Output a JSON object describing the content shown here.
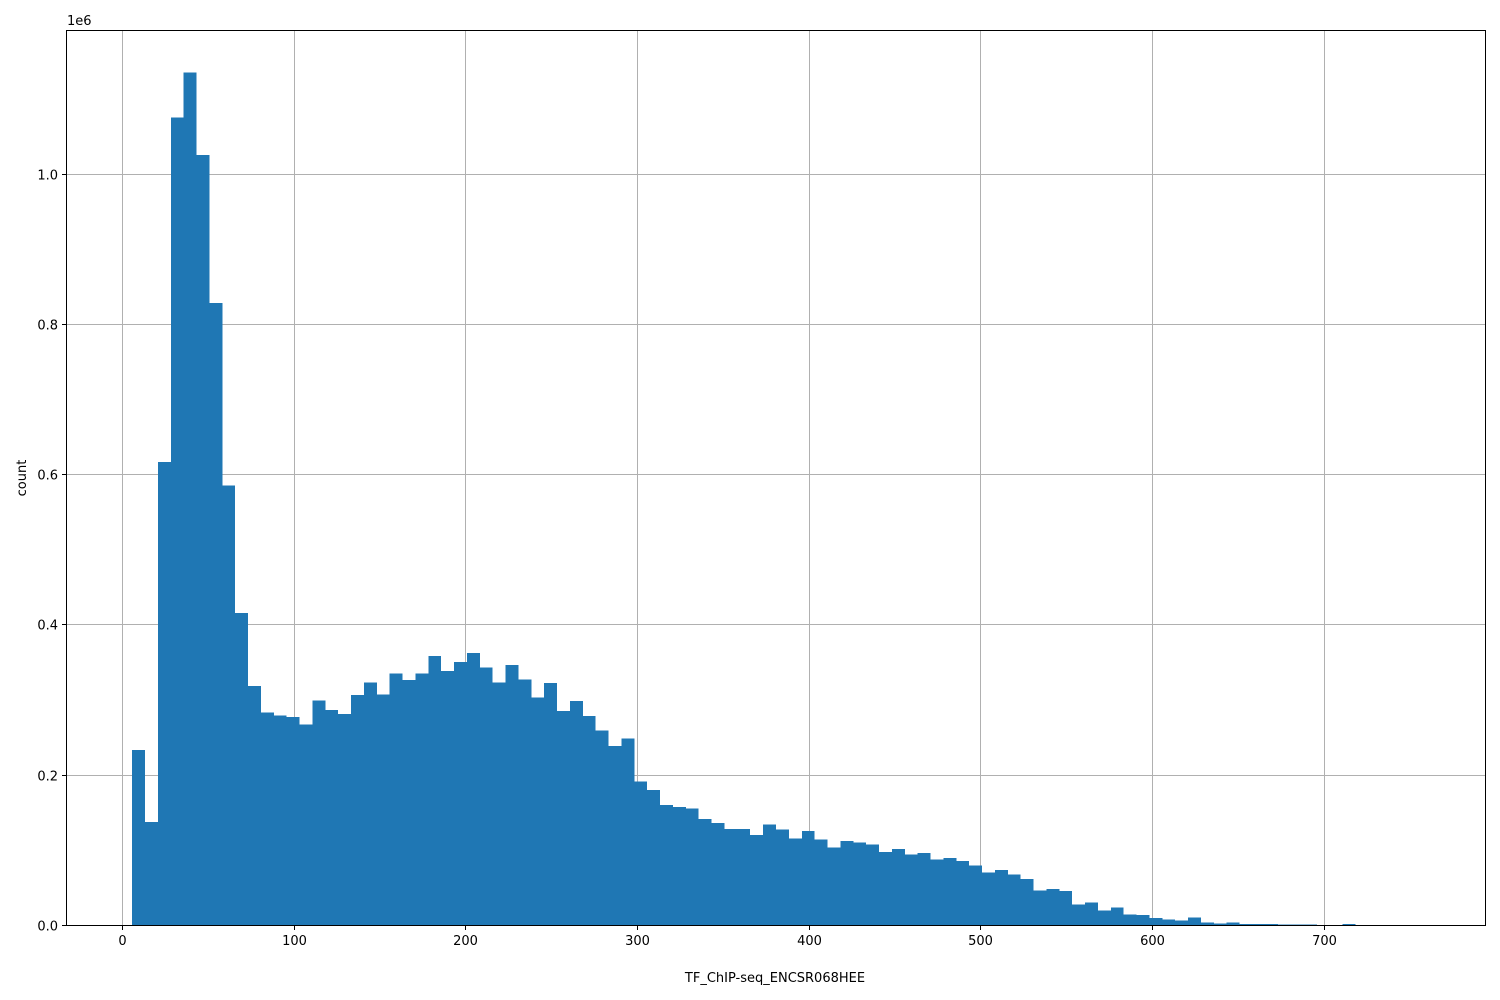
{
  "chart_data": {
    "type": "bar",
    "title": "",
    "xlabel": "TF_ChIP-seq_ENCSR068HEE",
    "ylabel": "count",
    "y_offset_label": "1e6",
    "xlim": [
      -32,
      794
    ],
    "ylim": [
      0,
      1190000
    ],
    "grid": true,
    "bar_color": "#1f77b4",
    "grid_color": "#b0b0b0",
    "x_ticks": [
      "0",
      "100",
      "200",
      "300",
      "400",
      "500",
      "600",
      "700"
    ],
    "y_ticks": [
      "0.0",
      "0.2",
      "0.4",
      "0.6",
      "0.8",
      "1.0"
    ],
    "bin_start": 6,
    "bin_width": 7.5,
    "values": [
      233000,
      137000,
      616000,
      1075000,
      1135000,
      1025000,
      828000,
      585000,
      415000,
      318000,
      283000,
      279000,
      277000,
      267000,
      299000,
      286000,
      281000,
      306000,
      323000,
      307000,
      335000,
      326000,
      335000,
      358000,
      338000,
      350000,
      362000,
      343000,
      323000,
      346000,
      327000,
      303000,
      322000,
      285000,
      298000,
      278000,
      259000,
      238000,
      248000,
      191000,
      180000,
      160000,
      157000,
      155000,
      141000,
      136000,
      128000,
      128000,
      120000,
      134000,
      127000,
      115000,
      125000,
      114000,
      103000,
      112000,
      110000,
      107000,
      97000,
      101000,
      94000,
      96000,
      87000,
      89000,
      85000,
      79000,
      70000,
      73000,
      67000,
      61000,
      46000,
      48000,
      45000,
      27000,
      30000,
      19000,
      23000,
      14000,
      13000,
      9000,
      7000,
      6000,
      10000,
      3000,
      2000,
      3000,
      1000,
      1500,
      1500,
      800,
      500,
      400,
      300,
      200,
      1500,
      300,
      200,
      100,
      50,
      20
    ]
  }
}
